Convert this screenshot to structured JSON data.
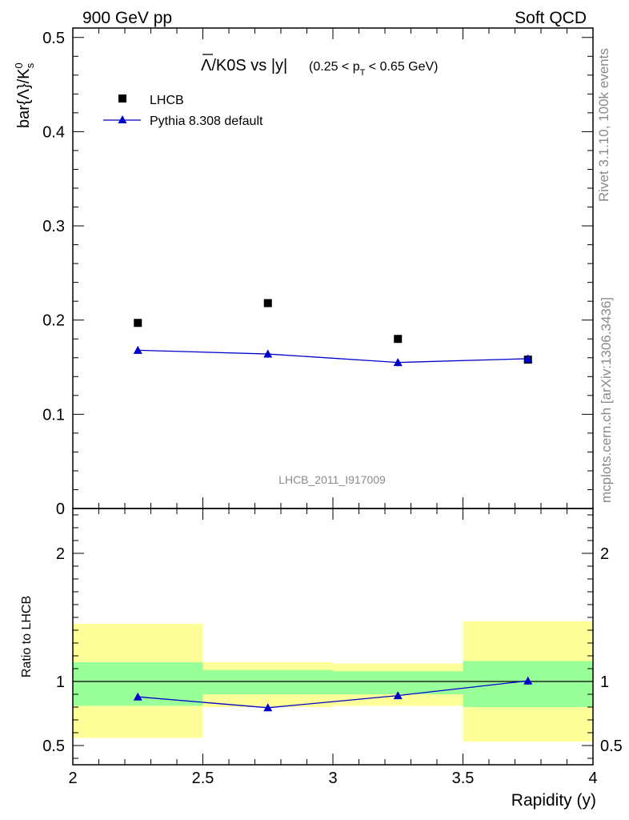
{
  "header": {
    "left": "900 GeV pp",
    "right": "Soft QCD"
  },
  "side_text": {
    "rivet": "Rivet 3.1.10,  100k events",
    "source": "mcplots.cern.ch [arXiv:1306.3436]"
  },
  "analysis_id": "LHCB_2011_I917009",
  "chart_data": [
    {
      "type": "scatter",
      "title": {
        "main": "Λ/K0S vs |y|",
        "cut": "(0.25 < p",
        "cut_sub": "T",
        "cut_end": " < 0.65 GeV)"
      },
      "ylabel": "bar{Λ}/K",
      "ylabel_sup": "0",
      "ylabel_sub": "s",
      "xlim": [
        2,
        4
      ],
      "ylim": [
        0,
        0.51
      ],
      "y_ticks": [
        "0",
        "0.1",
        "0.2",
        "0.3",
        "0.4",
        "0.5"
      ],
      "legend": {
        "placement": "top-left",
        "entries": [
          "LHCB",
          "Pythia 8.308 default"
        ]
      },
      "series": [
        {
          "name": "LHCB",
          "marker": "square",
          "color": "#000000",
          "x": [
            2.25,
            2.75,
            3.25,
            3.75
          ],
          "y": [
            0.197,
            0.218,
            0.18,
            0.158
          ]
        },
        {
          "name": "Pythia 8.308 default",
          "marker": "triangle",
          "line": true,
          "color": "#0000cc",
          "x": [
            2.25,
            2.75,
            3.25,
            3.75
          ],
          "y": [
            0.168,
            0.164,
            0.155,
            0.159
          ],
          "yerr": [
            0.004,
            0.004,
            0.004,
            0.004
          ]
        }
      ]
    },
    {
      "type": "line",
      "ylabel": "Ratio to LHCB",
      "xlabel": "Rapidity (y)",
      "xlim": [
        2,
        4
      ],
      "ylim": [
        0.35,
        2.35
      ],
      "x_ticks": [
        "2",
        "2.5",
        "3",
        "3.5",
        "4"
      ],
      "y_ticks": [
        "0.5",
        "1",
        "2"
      ],
      "reference": 1,
      "bands": [
        {
          "x": [
            2.0,
            2.5
          ],
          "green": [
            0.81,
            1.15
          ],
          "yellow": [
            0.56,
            1.45
          ]
        },
        {
          "x": [
            2.5,
            3.0
          ],
          "green": [
            0.9,
            1.09
          ],
          "yellow": [
            0.8,
            1.15
          ]
        },
        {
          "x": [
            3.0,
            3.5
          ],
          "green": [
            0.9,
            1.08
          ],
          "yellow": [
            0.81,
            1.14
          ]
        },
        {
          "x": [
            3.5,
            4.0
          ],
          "green": [
            0.8,
            1.16
          ],
          "yellow": [
            0.53,
            1.47
          ]
        }
      ],
      "band_colors": {
        "green": "#99ff99",
        "yellow": "#ffff99"
      },
      "series": [
        {
          "name": "Pythia 8.308 default",
          "color": "#0000cc",
          "x": [
            2.25,
            2.75,
            3.25,
            3.75
          ],
          "y": [
            0.88,
            0.795,
            0.89,
            1.005
          ],
          "yerr": [
            0.025,
            0.025,
            0.025,
            0.03
          ]
        }
      ]
    }
  ]
}
